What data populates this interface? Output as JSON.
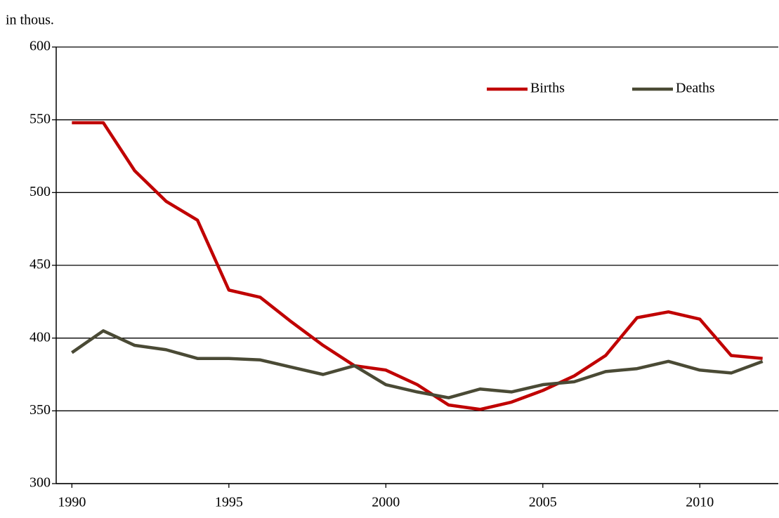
{
  "chart_data": {
    "type": "line",
    "y_unit_label": "in thous.",
    "x": [
      1990,
      1991,
      1992,
      1993,
      1994,
      1995,
      1996,
      1997,
      1998,
      1999,
      2000,
      2001,
      2002,
      2003,
      2004,
      2005,
      2006,
      2007,
      2008,
      2009,
      2010,
      2011,
      2012
    ],
    "series": [
      {
        "name": "Births",
        "color": "#c00000",
        "values": [
          548,
          548,
          515,
          494,
          481,
          433,
          428,
          411,
          395,
          381,
          378,
          368,
          354,
          351,
          356,
          364,
          374,
          388,
          414,
          418,
          413,
          388,
          386
        ]
      },
      {
        "name": "Deaths",
        "color": "#4a4a35",
        "values": [
          390,
          405,
          395,
          392,
          386,
          386,
          385,
          380,
          375,
          381,
          368,
          363,
          359,
          365,
          363,
          368,
          370,
          377,
          379,
          384,
          378,
          376,
          384
        ]
      }
    ],
    "xlim": [
      1989.5,
      2012.5
    ],
    "xticks": [
      1990,
      1995,
      2000,
      2005,
      2010
    ],
    "ylim": [
      300,
      600
    ],
    "yticks": [
      300,
      350,
      400,
      450,
      500,
      550,
      600
    ],
    "grid": true,
    "legend": "top-right"
  }
}
